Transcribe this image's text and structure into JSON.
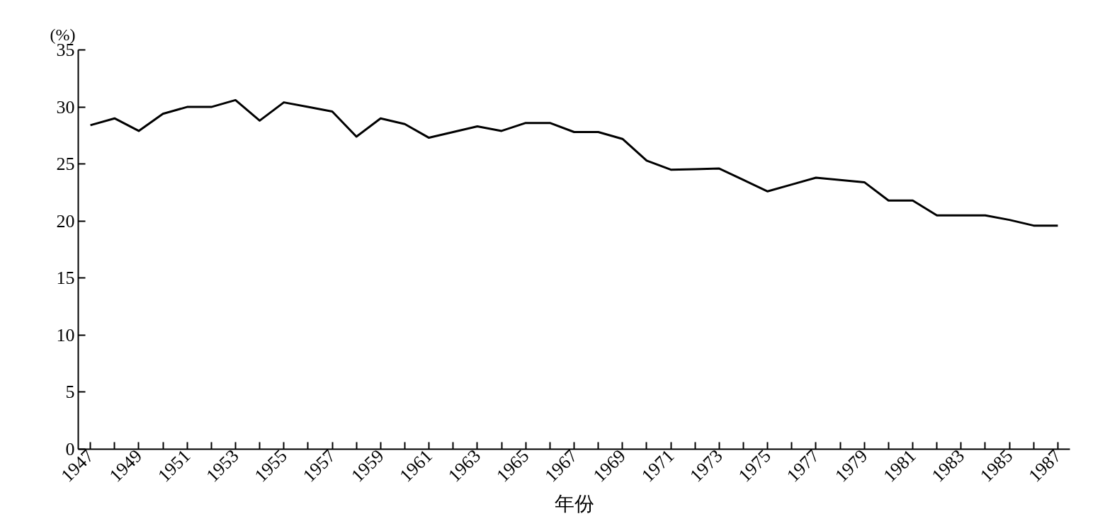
{
  "chart_data": {
    "type": "line",
    "xlabel": "年份",
    "ylabel": "(%)",
    "x": [
      1947,
      1948,
      1949,
      1950,
      1951,
      1952,
      1953,
      1954,
      1955,
      1956,
      1957,
      1958,
      1959,
      1960,
      1961,
      1962,
      1963,
      1964,
      1965,
      1966,
      1967,
      1968,
      1969,
      1970,
      1971,
      1972,
      1973,
      1974,
      1975,
      1976,
      1977,
      1978,
      1979,
      1980,
      1981,
      1982,
      1983,
      1984,
      1985,
      1986,
      1987
    ],
    "series": [
      {
        "color": "#000000",
        "values": [
          28.4,
          29.0,
          27.9,
          29.4,
          30.0,
          30.0,
          30.6,
          28.8,
          30.4,
          30.0,
          29.6,
          27.4,
          29.0,
          28.5,
          27.3,
          27.8,
          28.3,
          27.9,
          28.6,
          28.6,
          27.8,
          27.8,
          27.2,
          25.3,
          24.5,
          24.55,
          24.6,
          23.6,
          22.6,
          23.2,
          23.8,
          23.6,
          23.4,
          21.8,
          21.8,
          20.5,
          20.5,
          20.5,
          20.1,
          19.6,
          19.6
        ]
      }
    ],
    "xlim": [
      1946.5,
      1987.5
    ],
    "xticks": [
      1947,
      {
        "value": 1948,
        "label": null
      },
      1949,
      {
        "value": 1950,
        "label": null
      },
      1951,
      {
        "value": 1952,
        "label": null
      },
      1953,
      {
        "value": 1954,
        "label": null
      },
      1955,
      {
        "value": 1956,
        "label": null
      },
      1957,
      {
        "value": 1958,
        "label": null
      },
      1959,
      {
        "value": 1960,
        "label": null
      },
      1961,
      {
        "value": 1962,
        "label": null
      },
      1963,
      {
        "value": 1964,
        "label": null
      },
      1965,
      {
        "value": 1966,
        "label": null
      },
      1967,
      {
        "value": 1968,
        "label": null
      },
      1969,
      {
        "value": 1970,
        "label": null
      },
      1971,
      {
        "value": 1972,
        "label": null
      },
      1973,
      {
        "value": 1974,
        "label": null
      },
      1975,
      {
        "value": 1976,
        "label": null
      },
      1977,
      {
        "value": 1978,
        "label": null
      },
      1979,
      {
        "value": 1980,
        "label": null
      },
      1981,
      {
        "value": 1982,
        "label": null
      },
      1983,
      {
        "value": 1984,
        "label": null
      },
      1985,
      {
        "value": 1986,
        "label": null
      },
      1987
    ],
    "ylim": [
      0,
      35
    ],
    "yticks": [
      0,
      5,
      10,
      15,
      20,
      25,
      30,
      35
    ],
    "grid": false,
    "marker": "none",
    "line_style": "solid"
  }
}
